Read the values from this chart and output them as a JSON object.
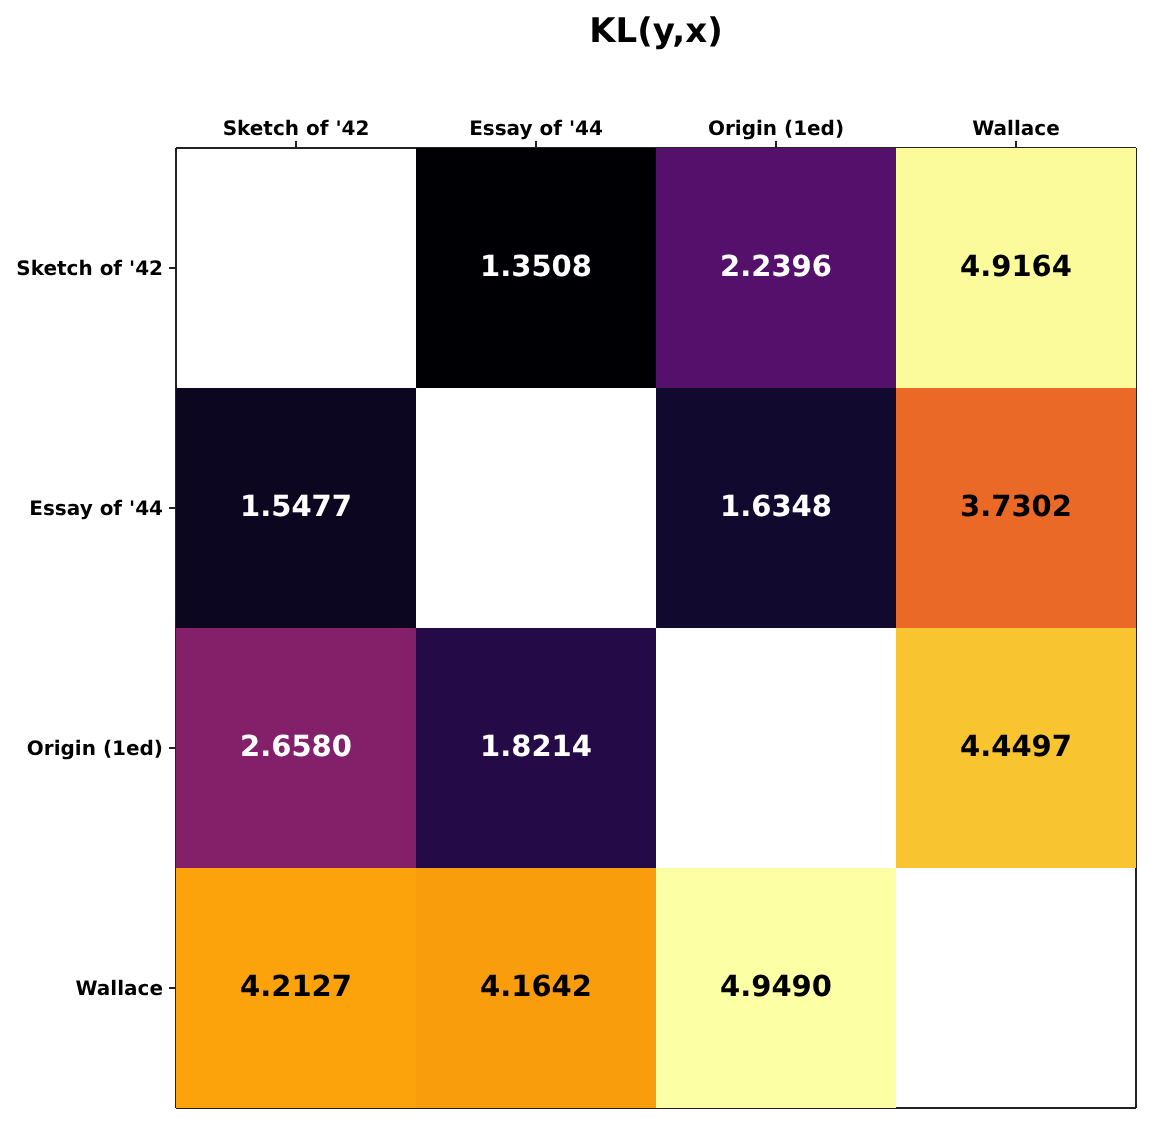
{
  "chart_data": {
    "type": "heatmap",
    "title": "KL(y,x)",
    "categories": [
      "Sketch of '42",
      "Essay of '44",
      "Origin (1ed)",
      "Wallace"
    ],
    "y_categories": [
      "Sketch of '42",
      "Essay of '44",
      "Origin (1ed)",
      "Wallace"
    ],
    "cells": [
      [
        null,
        1.3508,
        2.2396,
        4.9164
      ],
      [
        1.5477,
        null,
        1.6348,
        3.7302
      ],
      [
        2.658,
        1.8214,
        null,
        4.4497
      ],
      [
        4.2127,
        4.1642,
        4.949,
        null
      ]
    ],
    "cell_labels": [
      [
        null,
        "1.3508",
        "2.2396",
        "4.9164"
      ],
      [
        "1.5477",
        null,
        "1.6348",
        "3.7302"
      ],
      [
        "2.6580",
        "1.8214",
        null,
        "4.4497"
      ],
      [
        "4.2127",
        "4.1642",
        "4.9490",
        null
      ]
    ]
  }
}
